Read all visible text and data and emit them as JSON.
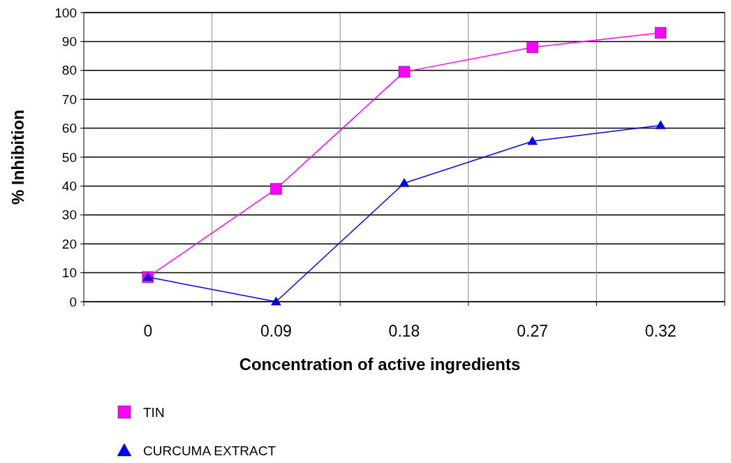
{
  "chart_data": {
    "type": "line",
    "xlabel": "Concentration of active ingredients",
    "ylabel": "% Inhibition",
    "categories": [
      "0",
      "0.09",
      "0.18",
      "0.27",
      "0.32"
    ],
    "ylim": [
      0,
      100
    ],
    "yticks": [
      0,
      10,
      20,
      30,
      40,
      50,
      60,
      70,
      80,
      90,
      100
    ],
    "grid": true,
    "legend": "bottom",
    "series": [
      {
        "name": "TIN",
        "color": "#ff00ff",
        "marker": "square",
        "values": [
          8.5,
          39,
          79.5,
          88,
          93
        ]
      },
      {
        "name": "CURCUMA EXTRACT",
        "color": "#0000ff",
        "marker": "triangle",
        "values": [
          8.5,
          0,
          41,
          55.5,
          61
        ]
      }
    ]
  }
}
